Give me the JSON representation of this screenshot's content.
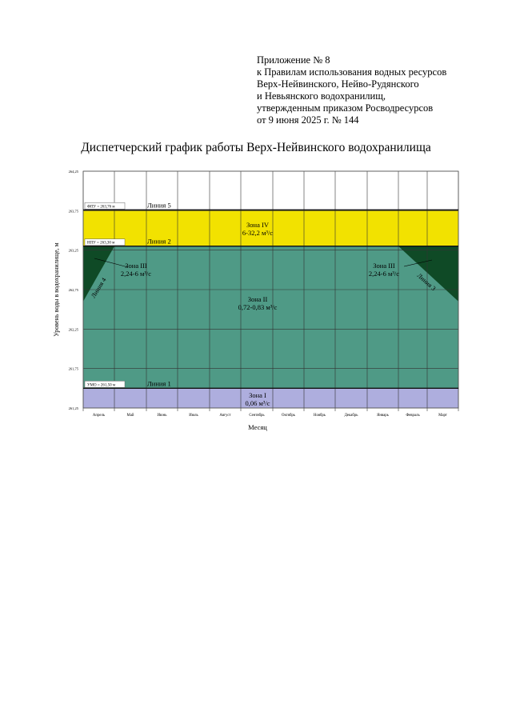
{
  "header": {
    "lines": [
      "Приложение № 8",
      "к Правилам использования водных ресурсов",
      "Верх-Нейвинского, Нейво-Рудянского",
      "и Невьянского водохранилищ,",
      "утвержденным приказом Росводресурсов",
      "от 9 июня 2025 г. № 144"
    ]
  },
  "chart_data": {
    "type": "area",
    "title": "Диспетчерский график работы Верх-Нейвинского водохранилища",
    "xlabel": "Месяц",
    "ylabel": "Уровень воды в водохранилище, м",
    "categories": [
      "Апрель",
      "Май",
      "Июнь",
      "Июль",
      "Август",
      "Сентябрь",
      "Октябрь",
      "Ноябрь",
      "Декабрь",
      "Январь",
      "Февраль",
      "Март"
    ],
    "yticks": [
      "264,25",
      "263,75",
      "263,25",
      "262,75",
      "262,25",
      "261,75",
      "261,25"
    ],
    "ylim": [
      261.25,
      264.25
    ],
    "grid": true,
    "levels": [
      {
        "label": "ФПУ = 263,76 м",
        "value": 263.76,
        "line": "Линия 5"
      },
      {
        "label": "НПУ = 263,30 м",
        "value": 263.3,
        "line": "Линия 2"
      },
      {
        "label": "УМО = 261,50 м",
        "value": 261.5,
        "line": "Линия 1"
      }
    ],
    "zones": [
      {
        "name": "Зона IV",
        "flow": "6-32,2 м³/с",
        "from": 263.3,
        "to": 263.76,
        "color": "#f2e200"
      },
      {
        "name": "Зона II",
        "flow": "0,72-0,83 м³/с",
        "from": 261.5,
        "to": 263.3,
        "color": "#4f9a86"
      },
      {
        "name": "Зона I",
        "flow": "0,06 м³/с",
        "from": 261.25,
        "to": 261.5,
        "color": "#aeaede"
      }
    ],
    "zone3": {
      "name": "Зона III",
      "flow": "2,24-6 м³/с",
      "color": "#0f4a26",
      "line4": {
        "label": "Линия 4",
        "start_level": 262.6,
        "end_month": "Май",
        "end_level": 263.3
      },
      "line3": {
        "label": "Линия 3",
        "start_month": "Февраль",
        "start_level": 263.3,
        "end_level": 262.6
      }
    }
  }
}
